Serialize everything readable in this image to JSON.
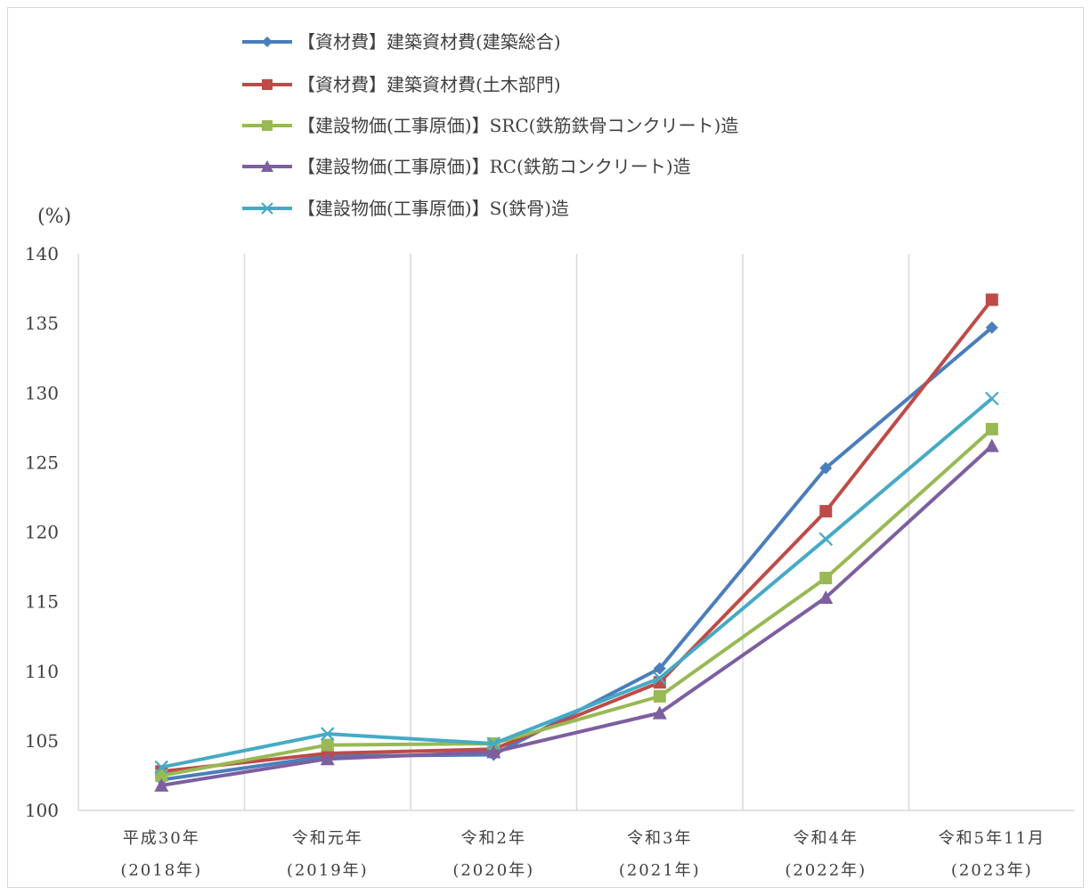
{
  "chart_data": {
    "type": "line",
    "unit_label": "(%)",
    "categories": [
      [
        "平成30年",
        "(2018年)"
      ],
      [
        "令和元年",
        "(2019年)"
      ],
      [
        "令和2年",
        "(2020年)"
      ],
      [
        "令和3年",
        "(2021年)"
      ],
      [
        "令和4年",
        "(2022年)"
      ],
      [
        "令和5年11月",
        "(2023年)"
      ]
    ],
    "ylim": [
      100,
      140
    ],
    "yticks": [
      100,
      105,
      110,
      115,
      120,
      125,
      130,
      135,
      140
    ],
    "grid": "vertical",
    "legend_position": "top",
    "series": [
      {
        "name": "【資材費】建築資材費(建築総合)",
        "color": "#4a7ebb",
        "marker": "diamond",
        "values": [
          102.2,
          103.9,
          104.0,
          110.2,
          124.6,
          134.7
        ]
      },
      {
        "name": "【資材費】建築資材費(土木部門)",
        "color": "#be4b48",
        "marker": "square",
        "values": [
          102.8,
          104.1,
          104.4,
          109.2,
          121.5,
          136.7
        ]
      },
      {
        "name": "【建設物価(工事原価)】SRC(鉄筋鉄骨コンクリート)造",
        "color": "#98b954",
        "marker": "square",
        "values": [
          102.5,
          104.7,
          104.8,
          108.2,
          116.7,
          127.4
        ]
      },
      {
        "name": "【建設物価(工事原価)】RC(鉄筋コンクリート)造",
        "color": "#7d5fa0",
        "marker": "triangle",
        "values": [
          101.8,
          103.7,
          104.2,
          107.0,
          115.3,
          126.2
        ]
      },
      {
        "name": "【建設物価(工事原価)】S(鉄骨)造",
        "color": "#46aac5",
        "marker": "x",
        "values": [
          103.1,
          105.5,
          104.8,
          109.5,
          119.5,
          129.6
        ]
      }
    ]
  }
}
